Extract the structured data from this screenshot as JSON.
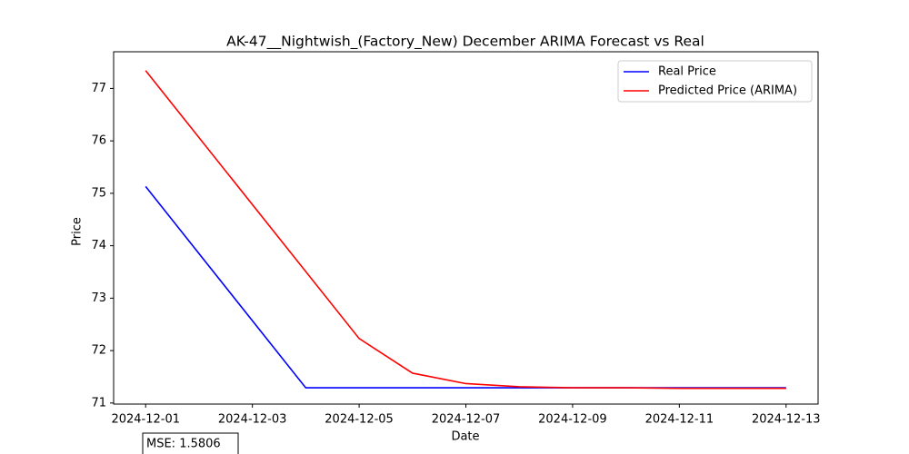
{
  "chart_data": {
    "type": "line",
    "title": "AK-47__Nightwish_(Factory_New) December ARIMA Forecast vs Real",
    "x_label": "Date",
    "y_label": "Price",
    "series": [
      {
        "name": "Real Price",
        "color": "#0000ff",
        "x": [
          "2024-12-01",
          "2024-12-04",
          "2024-12-05",
          "2024-12-06",
          "2024-12-07",
          "2024-12-08",
          "2024-12-09",
          "2024-12-10",
          "2024-12-11",
          "2024-12-12",
          "2024-12-13"
        ],
        "values": [
          75.13,
          71.29,
          71.29,
          71.29,
          71.29,
          71.29,
          71.29,
          71.29,
          71.29,
          71.29,
          71.29
        ]
      },
      {
        "name": "Predicted Price (ARIMA)",
        "color": "#ff0000",
        "x": [
          "2024-12-01",
          "2024-12-05",
          "2024-12-06",
          "2024-12-07",
          "2024-12-08",
          "2024-12-09",
          "2024-12-10",
          "2024-12-11",
          "2024-12-12",
          "2024-12-13"
        ],
        "values": [
          77.34,
          72.23,
          71.57,
          71.37,
          71.31,
          71.29,
          71.29,
          71.28,
          71.28,
          71.28
        ]
      }
    ],
    "xlim": [
      "2024-11-30T09:36",
      "2024-12-13T14:24"
    ],
    "xticks": [
      "2024-12-01",
      "2024-12-03",
      "2024-12-05",
      "2024-12-07",
      "2024-12-09",
      "2024-12-11",
      "2024-12-13"
    ],
    "ylim": [
      70.98,
      77.7
    ],
    "yticks": [
      71,
      72,
      73,
      74,
      75,
      76,
      77
    ],
    "grid": false,
    "legend": "upper-right",
    "annotation": "MSE: 1.5806"
  }
}
